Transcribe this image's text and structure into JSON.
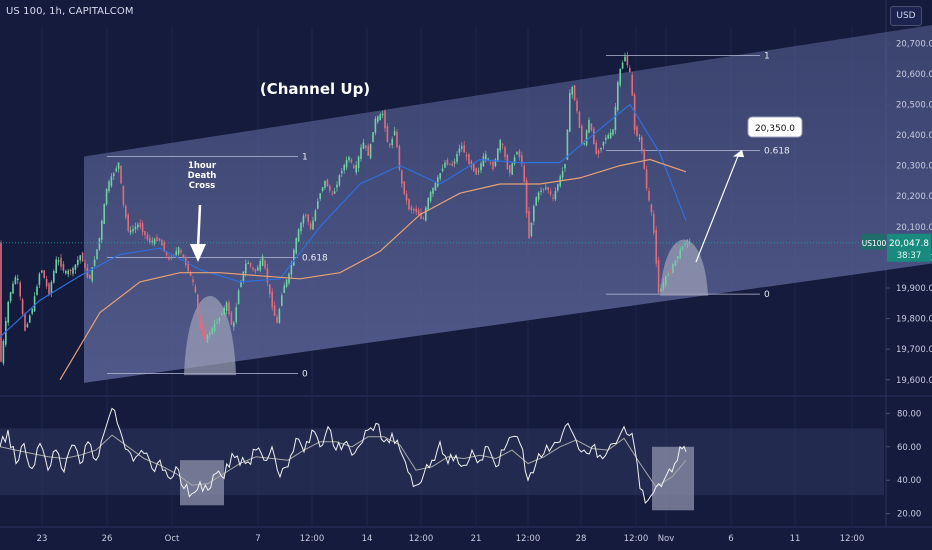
{
  "header": {
    "title": "US 100, 1h, CAPITALCOM",
    "currency_button": "USD"
  },
  "colors": {
    "background": "#141b3d",
    "candle_up": "#6fd1a3",
    "candle_down": "#e06c7d",
    "ma_fast": "#2f6fe0",
    "ma_slow": "#e8a173",
    "oscillator": "#f2f2f2",
    "oscillator_signal": "#a8a8a8",
    "price_tag": "#188a7e"
  },
  "annotations": {
    "channel": "(Channel Up)",
    "death_cross": [
      "1hour",
      "Death",
      "Cross"
    ],
    "target": "20,350.0",
    "fib_left": {
      "top": "1",
      "mid": "0.618",
      "bottom": "0"
    },
    "fib_right": {
      "top": "1",
      "mid": "0.618",
      "bottom": "0"
    }
  },
  "price_tag": {
    "symbol": "US100",
    "price": "20,047.8",
    "countdown": "38:37"
  },
  "chart_data": [
    {
      "type": "candlestick",
      "title": "US 100, 1h, CAPITALCOM",
      "ylabel": "USD",
      "y_ticks": [
        "20,700.0",
        "20,600.0",
        "20,500.0",
        "20,400.0",
        "20,300.0",
        "20,200.0",
        "20,100.0",
        "20,000.0",
        "19,900.0",
        "19,800.0",
        "19,700.0",
        "19,600.0"
      ],
      "x_ticks": [
        "23",
        "26",
        "Oct",
        "7",
        "12:00",
        "14",
        "12:00",
        "21",
        "12:00",
        "28",
        "12:00",
        "Nov",
        "6",
        "11",
        "12:00"
      ],
      "ylim": [
        19560,
        20750
      ],
      "price_path": [
        [
          0,
          19600
        ],
        [
          10,
          19870
        ],
        [
          18,
          19950
        ],
        [
          26,
          19760
        ],
        [
          34,
          19840
        ],
        [
          42,
          19970
        ],
        [
          50,
          19880
        ],
        [
          58,
          20000
        ],
        [
          66,
          19950
        ],
        [
          74,
          19960
        ],
        [
          82,
          20010
        ],
        [
          90,
          19920
        ],
        [
          100,
          20050
        ],
        [
          108,
          20230
        ],
        [
          114,
          20270
        ],
        [
          120,
          20310
        ],
        [
          124,
          20180
        ],
        [
          130,
          20080
        ],
        [
          140,
          20110
        ],
        [
          150,
          20050
        ],
        [
          160,
          20060
        ],
        [
          170,
          19990
        ],
        [
          180,
          20030
        ],
        [
          188,
          19970
        ],
        [
          196,
          19900
        ],
        [
          200,
          19780
        ],
        [
          206,
          19730
        ],
        [
          212,
          19760
        ],
        [
          220,
          19800
        ],
        [
          228,
          19850
        ],
        [
          234,
          19760
        ],
        [
          240,
          19900
        ],
        [
          248,
          19990
        ],
        [
          256,
          19950
        ],
        [
          264,
          20000
        ],
        [
          272,
          19860
        ],
        [
          278,
          19780
        ],
        [
          284,
          19900
        ],
        [
          290,
          19940
        ],
        [
          298,
          20070
        ],
        [
          306,
          20150
        ],
        [
          312,
          20090
        ],
        [
          320,
          20200
        ],
        [
          326,
          20250
        ],
        [
          334,
          20200
        ],
        [
          342,
          20280
        ],
        [
          350,
          20330
        ],
        [
          356,
          20280
        ],
        [
          364,
          20380
        ],
        [
          370,
          20330
        ],
        [
          376,
          20450
        ],
        [
          384,
          20470
        ],
        [
          390,
          20350
        ],
        [
          396,
          20420
        ],
        [
          402,
          20250
        ],
        [
          410,
          20160
        ],
        [
          418,
          20150
        ],
        [
          424,
          20120
        ],
        [
          430,
          20200
        ],
        [
          438,
          20250
        ],
        [
          446,
          20310
        ],
        [
          454,
          20300
        ],
        [
          462,
          20370
        ],
        [
          470,
          20310
        ],
        [
          478,
          20270
        ],
        [
          486,
          20340
        ],
        [
          494,
          20290
        ],
        [
          502,
          20390
        ],
        [
          510,
          20270
        ],
        [
          518,
          20350
        ],
        [
          524,
          20300
        ],
        [
          530,
          20060
        ],
        [
          536,
          20190
        ],
        [
          542,
          20220
        ],
        [
          548,
          20230
        ],
        [
          554,
          20190
        ],
        [
          560,
          20250
        ],
        [
          566,
          20300
        ],
        [
          572,
          20580
        ],
        [
          578,
          20480
        ],
        [
          584,
          20350
        ],
        [
          590,
          20450
        ],
        [
          598,
          20330
        ],
        [
          606,
          20390
        ],
        [
          614,
          20410
        ],
        [
          620,
          20600
        ],
        [
          626,
          20660
        ],
        [
          632,
          20590
        ],
        [
          636,
          20410
        ],
        [
          642,
          20380
        ],
        [
          648,
          20220
        ],
        [
          654,
          20120
        ],
        [
          660,
          19880
        ],
        [
          666,
          19930
        ],
        [
          672,
          19960
        ],
        [
          678,
          20000
        ],
        [
          686,
          20050
        ],
        [
          692,
          20048
        ]
      ],
      "moving_averages": {
        "fast": [
          [
            0,
            19740
          ],
          [
            40,
            19860
          ],
          [
            80,
            19940
          ],
          [
            120,
            20010
          ],
          [
            160,
            20030
          ],
          [
            200,
            19960
          ],
          [
            240,
            19920
          ],
          [
            280,
            19930
          ],
          [
            320,
            20100
          ],
          [
            360,
            20240
          ],
          [
            400,
            20300
          ],
          [
            440,
            20240
          ],
          [
            480,
            20320
          ],
          [
            520,
            20310
          ],
          [
            560,
            20310
          ],
          [
            600,
            20420
          ],
          [
            630,
            20500
          ],
          [
            660,
            20340
          ],
          [
            686,
            20120
          ]
        ],
        "slow": [
          [
            60,
            19600
          ],
          [
            100,
            19820
          ],
          [
            140,
            19920
          ],
          [
            180,
            19950
          ],
          [
            220,
            19950
          ],
          [
            260,
            19940
          ],
          [
            300,
            19930
          ],
          [
            340,
            19950
          ],
          [
            380,
            20020
          ],
          [
            420,
            20140
          ],
          [
            460,
            20210
          ],
          [
            500,
            20240
          ],
          [
            540,
            20240
          ],
          [
            580,
            20260
          ],
          [
            620,
            20300
          ],
          [
            650,
            20320
          ],
          [
            686,
            20280
          ]
        ]
      },
      "channel_up": {
        "lower": [
          [
            84,
            19590
          ],
          [
            932,
            19980
          ]
        ],
        "upper": [
          [
            84,
            20330
          ],
          [
            932,
            20760
          ]
        ]
      },
      "fibonacci_left": {
        "level_1": 20330,
        "level_0618": 20000,
        "level_0": 19620
      },
      "fibonacci_right": {
        "level_1": 20660,
        "level_0618": 20350,
        "level_0": 19880
      },
      "target_price": 20350,
      "current_price": 20047.8
    },
    {
      "type": "line",
      "title": "",
      "y_ticks": [
        "80.00",
        "60.00",
        "40.00",
        "20.00"
      ],
      "ylim": [
        15,
        88
      ],
      "highlight_band": [
        31,
        71
      ],
      "series": [
        {
          "values": [
            [
              0,
              60
            ],
            [
              8,
              70
            ],
            [
              16,
              50
            ],
            [
              24,
              62
            ],
            [
              32,
              47
            ],
            [
              40,
              62
            ],
            [
              48,
              46
            ],
            [
              56,
              58
            ],
            [
              64,
              45
            ],
            [
              72,
              61
            ],
            [
              80,
              50
            ],
            [
              88,
              63
            ],
            [
              96,
              52
            ],
            [
              104,
              68
            ],
            [
              112,
              83
            ],
            [
              120,
              70
            ],
            [
              128,
              58
            ],
            [
              136,
              54
            ],
            [
              144,
              56
            ],
            [
              152,
              47
            ],
            [
              160,
              52
            ],
            [
              168,
              42
            ],
            [
              176,
              48
            ],
            [
              184,
              35
            ],
            [
              192,
              32
            ],
            [
              200,
              39
            ],
            [
              208,
              34
            ],
            [
              216,
              44
            ],
            [
              224,
              41
            ],
            [
              232,
              56
            ],
            [
              240,
              49
            ],
            [
              248,
              51
            ],
            [
              256,
              58
            ],
            [
              264,
              52
            ],
            [
              272,
              60
            ],
            [
              280,
              42
            ],
            [
              288,
              48
            ],
            [
              296,
              65
            ],
            [
              304,
              57
            ],
            [
              312,
              70
            ],
            [
              320,
              60
            ],
            [
              328,
              72
            ],
            [
              336,
              58
            ],
            [
              344,
              62
            ],
            [
              352,
              55
            ],
            [
              360,
              61
            ],
            [
              368,
              70
            ],
            [
              376,
              74
            ],
            [
              384,
              63
            ],
            [
              392,
              68
            ],
            [
              400,
              58
            ],
            [
              408,
              45
            ],
            [
              416,
              37
            ],
            [
              424,
              44
            ],
            [
              432,
              52
            ],
            [
              440,
              63
            ],
            [
              448,
              50
            ],
            [
              456,
              55
            ],
            [
              464,
              49
            ],
            [
              472,
              58
            ],
            [
              480,
              52
            ],
            [
              488,
              60
            ],
            [
              496,
              48
            ],
            [
              504,
              58
            ],
            [
              512,
              66
            ],
            [
              520,
              62
            ],
            [
              528,
              40
            ],
            [
              536,
              50
            ],
            [
              544,
              56
            ],
            [
              552,
              60
            ],
            [
              560,
              63
            ],
            [
              568,
              74
            ],
            [
              576,
              64
            ],
            [
              584,
              58
            ],
            [
              592,
              60
            ],
            [
              600,
              55
            ],
            [
              608,
              58
            ],
            [
              616,
              62
            ],
            [
              624,
              72
            ],
            [
              632,
              68
            ],
            [
              640,
              35
            ],
            [
              648,
              28
            ],
            [
              656,
              36
            ],
            [
              664,
              40
            ],
            [
              672,
              45
            ],
            [
              680,
              60
            ],
            [
              686,
              57
            ]
          ]
        },
        {
          "values": [
            [
              0,
              60
            ],
            [
              16,
              58
            ],
            [
              32,
              56
            ],
            [
              48,
              54
            ],
            [
              64,
              53
            ],
            [
              80,
              55
            ],
            [
              96,
              58
            ],
            [
              112,
              67
            ],
            [
              128,
              60
            ],
            [
              144,
              53
            ],
            [
              160,
              49
            ],
            [
              176,
              44
            ],
            [
              192,
              37
            ],
            [
              208,
              38
            ],
            [
              224,
              44
            ],
            [
              240,
              50
            ],
            [
              256,
              54
            ],
            [
              272,
              53
            ],
            [
              288,
              52
            ],
            [
              304,
              58
            ],
            [
              320,
              63
            ],
            [
              336,
              63
            ],
            [
              352,
              60
            ],
            [
              368,
              66
            ],
            [
              384,
              66
            ],
            [
              400,
              61
            ],
            [
              416,
              46
            ],
            [
              432,
              48
            ],
            [
              448,
              54
            ],
            [
              464,
              53
            ],
            [
              480,
              55
            ],
            [
              496,
              53
            ],
            [
              512,
              58
            ],
            [
              528,
              50
            ],
            [
              544,
              54
            ],
            [
              560,
              60
            ],
            [
              576,
              64
            ],
            [
              592,
              59
            ],
            [
              608,
              58
            ],
            [
              624,
              65
            ],
            [
              640,
              50
            ],
            [
              656,
              36
            ],
            [
              672,
              42
            ],
            [
              686,
              52
            ]
          ]
        }
      ]
    }
  ]
}
